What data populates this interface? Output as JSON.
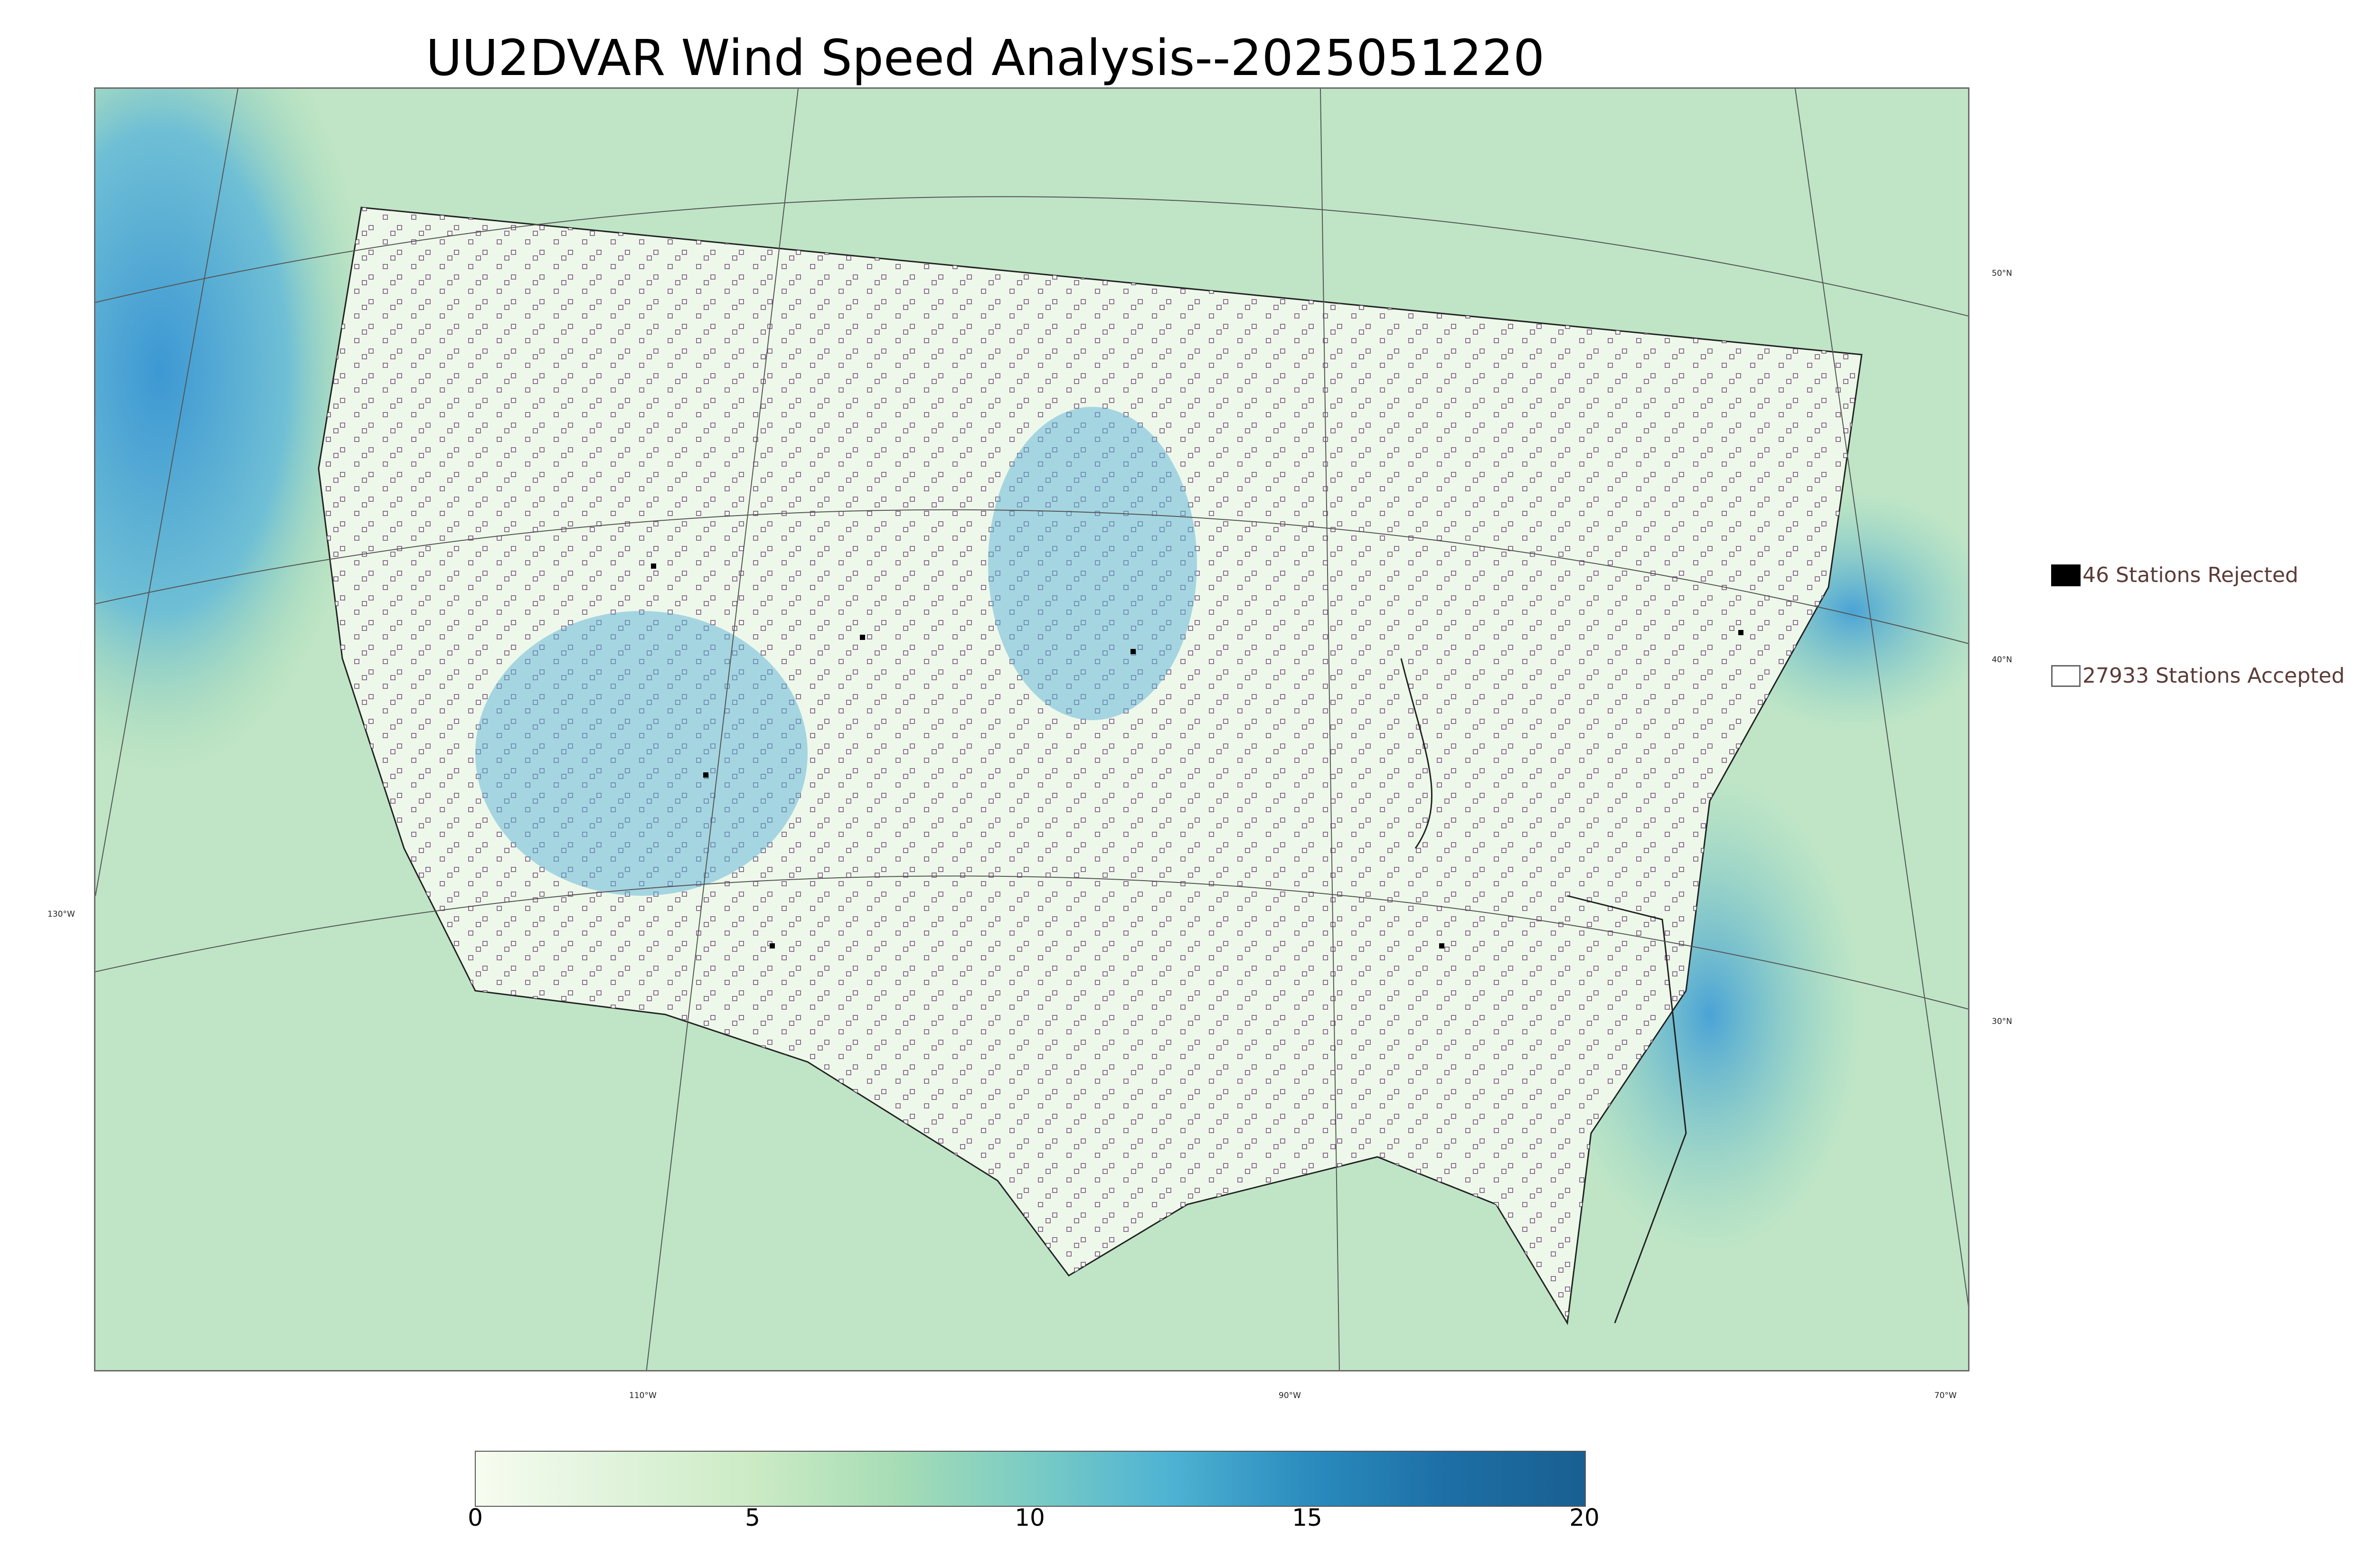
{
  "title": "UU2DVAR Wind Speed Analysis--2025051220",
  "map": {
    "longitude_labels": [
      "130°W",
      "110°W",
      "90°W",
      "70°W"
    ],
    "latitude_labels": [
      "50°N",
      "40°N",
      "30°N"
    ],
    "colors": {
      "water_high_wind": "#4aa3d6",
      "land_low_wind": "#f4fbf0",
      "moderate_wind": "#a6dbb0",
      "station_outline": "#5a3d5c"
    }
  },
  "legend": {
    "rejected_label": "46 Stations Rejected",
    "accepted_label": "27933 Stations Accepted",
    "rejected_color": "#000000",
    "accepted_color": "#ffffff"
  },
  "colorbar": {
    "ticks": [
      "0",
      "5",
      "10",
      "15",
      "20"
    ],
    "range": [
      0,
      20
    ],
    "colors": [
      "#f7fcf0",
      "#e0f3db",
      "#ccebc5",
      "#a8ddb5",
      "#7bccc4",
      "#4eb3d3",
      "#2b8cbe",
      "#1d6fa6",
      "#195f91"
    ]
  }
}
